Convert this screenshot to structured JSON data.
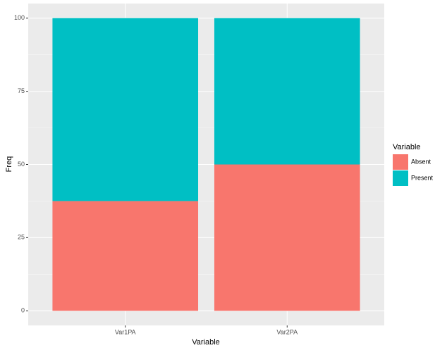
{
  "chart_data": {
    "type": "stacked-bar",
    "categories": [
      "Var1PA",
      "Var2PA"
    ],
    "series": [
      {
        "name": "Absent",
        "color": "#f8766d",
        "values": [
          37.5,
          50
        ]
      },
      {
        "name": "Present",
        "color": "#00bfc4",
        "values": [
          62.5,
          50
        ]
      }
    ],
    "x_label": "Variable",
    "y_label": "Freq",
    "legend_title": "Variable",
    "ylim": [
      -5,
      105
    ],
    "yticks": [
      0,
      25,
      50,
      75,
      100
    ],
    "grid": true,
    "legend_position": "right"
  }
}
